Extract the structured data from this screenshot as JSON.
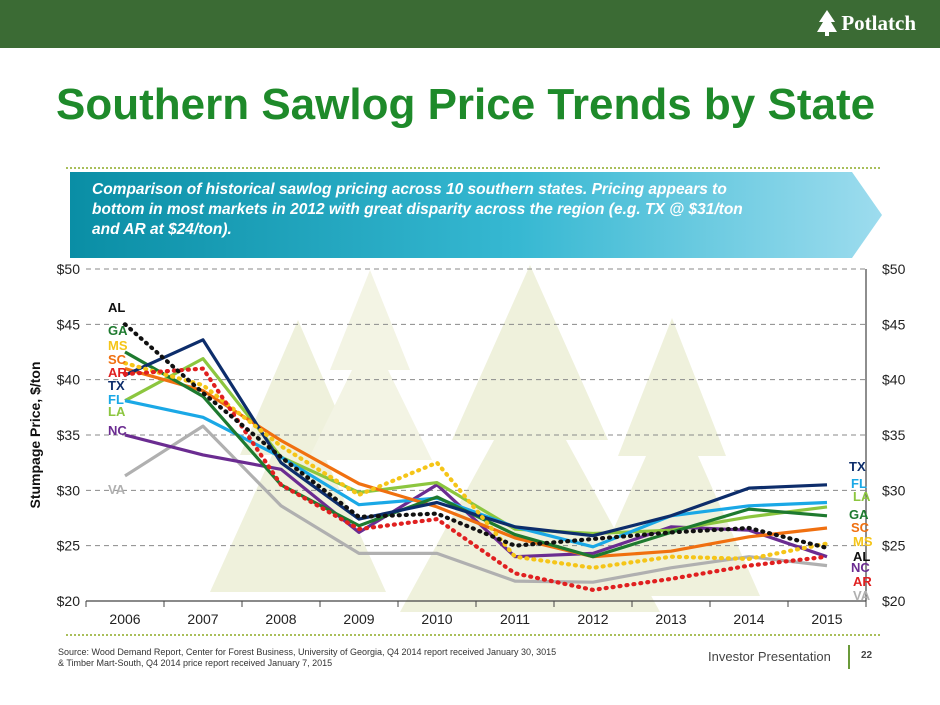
{
  "header": {
    "logo_text": "Potlatch",
    "logo_mark": "tree-icon"
  },
  "title": "Southern Sawlog Price Trends by State",
  "banner": {
    "text": "Comparison of historical sawlog pricing across 10 southern states. Pricing appears to bottom in most markets in 2012 with great disparity across the region (e.g. TX @ $31/ton and AR at $24/ton)."
  },
  "footer": {
    "source_lines": [
      "Source: Wood Demand Report, Center for Forest Business, University of Georgia, Q4 2014 report received January 30, 3015",
      "& Timber Mart-South, Q4 2014 price report received January 7, 2015"
    ],
    "label": "Investor Presentation",
    "page": "22"
  },
  "chart_data": {
    "type": "line",
    "title": "",
    "xlabel": "",
    "ylabel": "Stumpage Price, $/ton",
    "x": [
      "2006",
      "2007",
      "2008",
      "2009",
      "2010",
      "2011",
      "2012",
      "2013",
      "2014",
      "2015"
    ],
    "ylim": [
      20,
      50
    ],
    "yticks": [
      "$20",
      "$25",
      "$30",
      "$35",
      "$40",
      "$45",
      "$50"
    ],
    "right_axis": true,
    "grid": "horizontal-dashed",
    "legend": "inline-labels",
    "series": [
      {
        "name": "AL",
        "color": "#111111",
        "style": "dotted",
        "values": [
          45.0,
          38.8,
          33.0,
          27.6,
          27.9,
          25.0,
          25.6,
          26.2,
          26.6,
          24.8
        ]
      },
      {
        "name": "GA",
        "color": "#1e7a2f",
        "style": "solid",
        "values": [
          42.5,
          38.5,
          30.5,
          26.8,
          29.4,
          26.0,
          24.0,
          26.2,
          28.3,
          27.7
        ]
      },
      {
        "name": "MS",
        "color": "#f5c518",
        "style": "dotted",
        "values": [
          41.5,
          39.5,
          34.0,
          29.6,
          32.5,
          24.0,
          23.0,
          24.0,
          23.8,
          25.2
        ]
      },
      {
        "name": "SC",
        "color": "#f07010",
        "style": "solid",
        "values": [
          41.0,
          39.0,
          34.5,
          30.6,
          28.5,
          25.7,
          24.0,
          24.5,
          25.8,
          26.6
        ]
      },
      {
        "name": "AR",
        "color": "#e02020",
        "style": "dotted",
        "values": [
          40.5,
          41.0,
          30.5,
          26.5,
          27.4,
          22.5,
          21.0,
          22.0,
          23.2,
          24.0
        ]
      },
      {
        "name": "TX",
        "color": "#0d2d6b",
        "style": "solid",
        "values": [
          40.4,
          43.6,
          32.5,
          27.4,
          28.9,
          26.7,
          25.9,
          27.7,
          30.2,
          30.5
        ]
      },
      {
        "name": "FL",
        "color": "#1aa8e6",
        "style": "solid",
        "values": [
          38.1,
          36.6,
          33.0,
          28.7,
          29.3,
          26.7,
          24.9,
          27.7,
          28.6,
          28.9
        ]
      },
      {
        "name": "LA",
        "color": "#8cc63f",
        "style": "solid",
        "values": [
          38.1,
          41.9,
          33.0,
          29.8,
          30.7,
          26.5,
          26.1,
          26.4,
          27.6,
          28.5
        ]
      },
      {
        "name": "NC",
        "color": "#6b2c91",
        "style": "solid",
        "values": [
          35.0,
          33.2,
          31.9,
          26.2,
          30.5,
          24.0,
          24.3,
          26.7,
          26.4,
          24.0
        ]
      },
      {
        "name": "VA",
        "color": "#b0b0b0",
        "style": "solid",
        "values": [
          31.3,
          35.8,
          28.6,
          24.3,
          24.3,
          21.8,
          21.7,
          23.0,
          24.0,
          23.2
        ]
      }
    ],
    "left_labels": [
      "AL",
      "GA",
      "MS",
      "SC",
      "AR",
      "TX",
      "FL",
      "LA",
      "NC",
      "VA"
    ],
    "right_labels": [
      "TX",
      "FL",
      "LA",
      "GA",
      "SC",
      "MS",
      "AL",
      "NC",
      "AR",
      "VA"
    ]
  }
}
